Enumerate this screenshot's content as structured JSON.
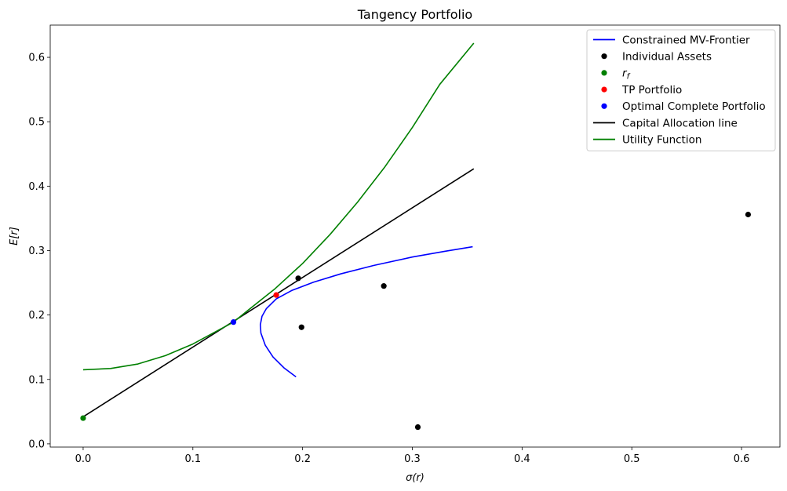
{
  "chart_data": {
    "type": "line",
    "title": "Tangency Portfolio",
    "xlabel": "σ(r)",
    "ylabel": "E[r]",
    "xlim": [
      -0.03,
      0.635
    ],
    "ylim": [
      -0.005,
      0.65
    ],
    "x_ticks": [
      0.0,
      0.1,
      0.2,
      0.3,
      0.4,
      0.5,
      0.6
    ],
    "x_tick_labels": [
      "0.0",
      "0.1",
      "0.2",
      "0.3",
      "0.4",
      "0.5",
      "0.6"
    ],
    "y_ticks": [
      0.0,
      0.1,
      0.2,
      0.3,
      0.4,
      0.5,
      0.6
    ],
    "y_tick_labels": [
      "0.0",
      "0.1",
      "0.2",
      "0.3",
      "0.4",
      "0.5",
      "0.6"
    ],
    "grid": false,
    "legend_position": "top-right",
    "series": [
      {
        "name": "Constrained MV-Frontier",
        "kind": "line",
        "color": "#0000ff",
        "points": [
          [
            0.194,
            0.104
          ],
          [
            0.183,
            0.118
          ],
          [
            0.173,
            0.135
          ],
          [
            0.166,
            0.153
          ],
          [
            0.162,
            0.172
          ],
          [
            0.1615,
            0.185
          ],
          [
            0.163,
            0.198
          ],
          [
            0.167,
            0.21
          ],
          [
            0.176,
            0.225
          ],
          [
            0.19,
            0.238
          ],
          [
            0.21,
            0.251
          ],
          [
            0.235,
            0.264
          ],
          [
            0.265,
            0.277
          ],
          [
            0.3,
            0.29
          ],
          [
            0.33,
            0.299
          ],
          [
            0.355,
            0.306
          ]
        ]
      },
      {
        "name": "Individual Assets",
        "kind": "scatter",
        "color": "#000000",
        "points": [
          [
            0.196,
            0.257
          ],
          [
            0.199,
            0.181
          ],
          [
            0.274,
            0.245
          ],
          [
            0.305,
            0.026
          ],
          [
            0.606,
            0.356
          ]
        ]
      },
      {
        "name": "r_f",
        "kind": "scatter",
        "color": "#008000",
        "points": [
          [
            0.0,
            0.04
          ]
        ]
      },
      {
        "name": "TP Portfolio",
        "kind": "scatter",
        "color": "#ff0000",
        "points": [
          [
            0.176,
            0.231
          ]
        ]
      },
      {
        "name": "Optimal Complete Portfolio",
        "kind": "scatter",
        "color": "#0000ff",
        "points": [
          [
            0.137,
            0.189
          ]
        ]
      },
      {
        "name": "Capital Allocation line",
        "kind": "line",
        "color": "#000000",
        "points": [
          [
            0.0,
            0.042
          ],
          [
            0.356,
            0.427
          ]
        ]
      },
      {
        "name": "Utility Function",
        "kind": "line",
        "color": "#008000",
        "points": [
          [
            0.0,
            0.115
          ],
          [
            0.025,
            0.117
          ],
          [
            0.05,
            0.124
          ],
          [
            0.075,
            0.137
          ],
          [
            0.1,
            0.155
          ],
          [
            0.125,
            0.178
          ],
          [
            0.137,
            0.189
          ],
          [
            0.15,
            0.207
          ],
          [
            0.175,
            0.241
          ],
          [
            0.2,
            0.28
          ],
          [
            0.225,
            0.325
          ],
          [
            0.25,
            0.375
          ],
          [
            0.275,
            0.43
          ],
          [
            0.3,
            0.491
          ],
          [
            0.325,
            0.558
          ],
          [
            0.356,
            0.622
          ]
        ]
      }
    ],
    "legend": [
      {
        "label": "Constrained MV-Frontier",
        "marker": "line",
        "color": "#0000ff"
      },
      {
        "label": "Individual Assets",
        "marker": "dot",
        "color": "#000000"
      },
      {
        "label": "r",
        "sub": "f",
        "italic": true,
        "marker": "dot",
        "color": "#008000"
      },
      {
        "label": "TP Portfolio",
        "marker": "dot",
        "color": "#ff0000"
      },
      {
        "label": "Optimal Complete Portfolio",
        "marker": "dot",
        "color": "#0000ff"
      },
      {
        "label": "Capital Allocation line",
        "marker": "line",
        "color": "#000000"
      },
      {
        "label": "Utility Function",
        "marker": "line",
        "color": "#008000"
      }
    ]
  }
}
